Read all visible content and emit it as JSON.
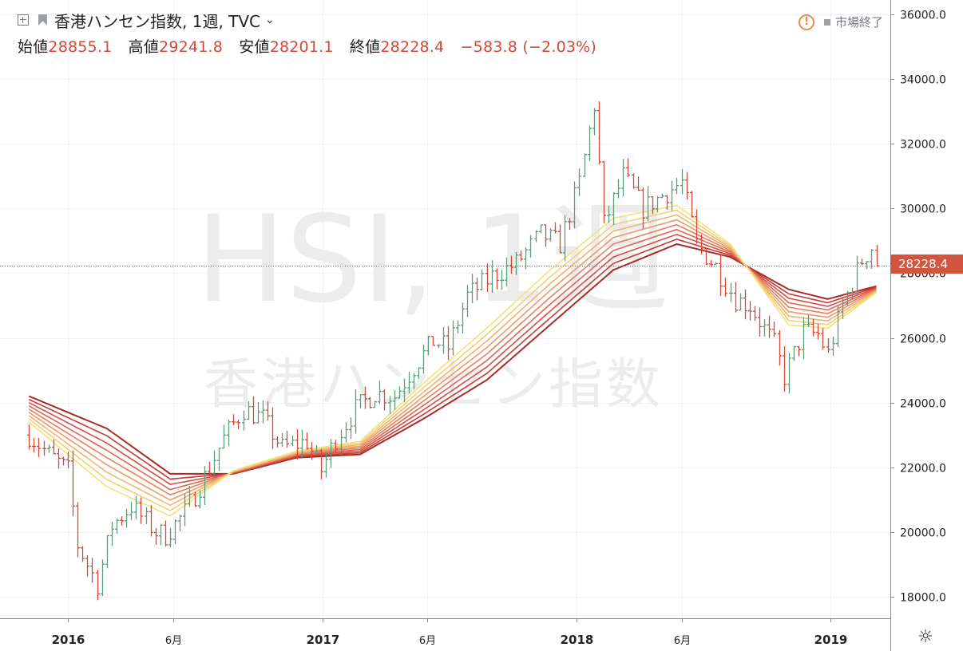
{
  "header": {
    "symbol_title": "香港ハンセン指数, 1週, TVC",
    "ohlc": [
      {
        "label": "始値",
        "value": "28855.1"
      },
      {
        "label": "高値",
        "value": "29241.8"
      },
      {
        "label": "安値",
        "value": "28201.1"
      },
      {
        "label": "終値",
        "value": "28228.4"
      },
      {
        "label": "",
        "value": "−583.8 (−2.03%)"
      }
    ]
  },
  "status": {
    "market_label": "市場終了"
  },
  "watermark": {
    "symbol": "HSI, 1週",
    "name": "香港ハンセン指数"
  },
  "last_price_label": "28228.4",
  "icons": {
    "expand": "expand-icon",
    "flag": "flag-icon",
    "alert": "alert-icon",
    "settings": "settings-icon"
  },
  "colors": {
    "up": "#5e9b79",
    "down": "#d1493b",
    "price_tag": "#d2553f"
  },
  "chart_data": {
    "type": "ohlc-bars",
    "ylim": [
      17500,
      36300
    ],
    "y_ticks": [
      "36000.0",
      "34000.0",
      "32000.0",
      "30000.0",
      "28000.0",
      "26000.0",
      "24000.0",
      "22000.0",
      "20000.0",
      "18000.0"
    ],
    "x_ticks": [
      "2016",
      "6月",
      "2017",
      "6月",
      "2018",
      "6月",
      "2019"
    ],
    "last_price": 28228.4,
    "close_path": [
      [
        "2015-11-06",
        23000
      ],
      [
        "2015-12-04",
        22400
      ],
      [
        "2016-01-01",
        21900
      ],
      [
        "2016-01-15",
        19600
      ],
      [
        "2016-02-12",
        18400
      ],
      [
        "2016-03-04",
        20200
      ],
      [
        "2016-04-01",
        20800
      ],
      [
        "2016-05-06",
        20000
      ],
      [
        "2016-05-20",
        19900
      ],
      [
        "2016-06-17",
        20600
      ],
      [
        "2016-07-15",
        21700
      ],
      [
        "2016-08-12",
        22900
      ],
      [
        "2016-09-09",
        23800
      ],
      [
        "2016-10-07",
        23500
      ],
      [
        "2016-11-04",
        22600
      ],
      [
        "2016-12-09",
        22800
      ],
      [
        "2016-12-30",
        21900
      ],
      [
        "2017-01-20",
        22900
      ],
      [
        "2017-02-17",
        23800
      ],
      [
        "2017-03-17",
        24300
      ],
      [
        "2017-04-14",
        24200
      ],
      [
        "2017-05-12",
        25100
      ],
      [
        "2017-06-09",
        25900
      ],
      [
        "2017-06-30",
        25700
      ],
      [
        "2017-07-28",
        27300
      ],
      [
        "2017-09-01",
        27900
      ],
      [
        "2017-10-06",
        28300
      ],
      [
        "2017-11-10",
        29200
      ],
      [
        "2017-12-08",
        28900
      ],
      [
        "2018-01-05",
        30800
      ],
      [
        "2018-01-26",
        33200
      ],
      [
        "2018-02-09",
        29500
      ],
      [
        "2018-03-09",
        31000
      ],
      [
        "2018-04-06",
        30000
      ],
      [
        "2018-05-04",
        30400
      ],
      [
        "2018-06-01",
        30800
      ],
      [
        "2018-06-22",
        28900
      ],
      [
        "2018-07-20",
        28200
      ],
      [
        "2018-08-17",
        27200
      ],
      [
        "2018-09-07",
        27000
      ],
      [
        "2018-10-12",
        25800
      ],
      [
        "2018-10-26",
        24800
      ],
      [
        "2018-11-23",
        26200
      ],
      [
        "2018-12-14",
        26100
      ],
      [
        "2018-12-28",
        25500
      ],
      [
        "2019-01-18",
        27000
      ],
      [
        "2019-02-15",
        28400
      ],
      [
        "2019-03-01",
        28800
      ],
      [
        "2019-03-08",
        28228
      ]
    ],
    "ribbon": {
      "lines": 9,
      "colors": [
        "#f3e27a",
        "#f4cf78",
        "#f1b46f",
        "#ec9a66",
        "#e6805c",
        "#df6651",
        "#d54e45",
        "#c33b37",
        "#a82a26"
      ],
      "lower": [
        [
          "2015-11-06",
          23400
        ],
        [
          "2016-02-26",
          21400
        ],
        [
          "2016-05-27",
          20500
        ],
        [
          "2016-08-26",
          21900
        ],
        [
          "2016-11-25",
          22500
        ],
        [
          "2017-02-24",
          22800
        ],
        [
          "2017-05-26",
          24600
        ],
        [
          "2017-08-25",
          26300
        ],
        [
          "2017-11-24",
          28100
        ],
        [
          "2018-02-23",
          29700
        ],
        [
          "2018-05-25",
          30100
        ],
        [
          "2018-08-10",
          28900
        ],
        [
          "2018-11-02",
          26400
        ],
        [
          "2018-12-28",
          26300
        ],
        [
          "2019-03-08",
          27400
        ]
      ],
      "upper": [
        [
          "2015-11-06",
          24200
        ],
        [
          "2016-02-26",
          23200
        ],
        [
          "2016-05-27",
          21800
        ],
        [
          "2016-08-26",
          21800
        ],
        [
          "2016-11-25",
          22300
        ],
        [
          "2017-02-24",
          22400
        ],
        [
          "2017-05-26",
          23500
        ],
        [
          "2017-08-25",
          24700
        ],
        [
          "2017-11-24",
          26400
        ],
        [
          "2018-02-23",
          28100
        ],
        [
          "2018-05-25",
          28900
        ],
        [
          "2018-08-10",
          28500
        ],
        [
          "2018-11-02",
          27500
        ],
        [
          "2018-12-28",
          27200
        ],
        [
          "2019-03-08",
          27600
        ]
      ]
    }
  }
}
